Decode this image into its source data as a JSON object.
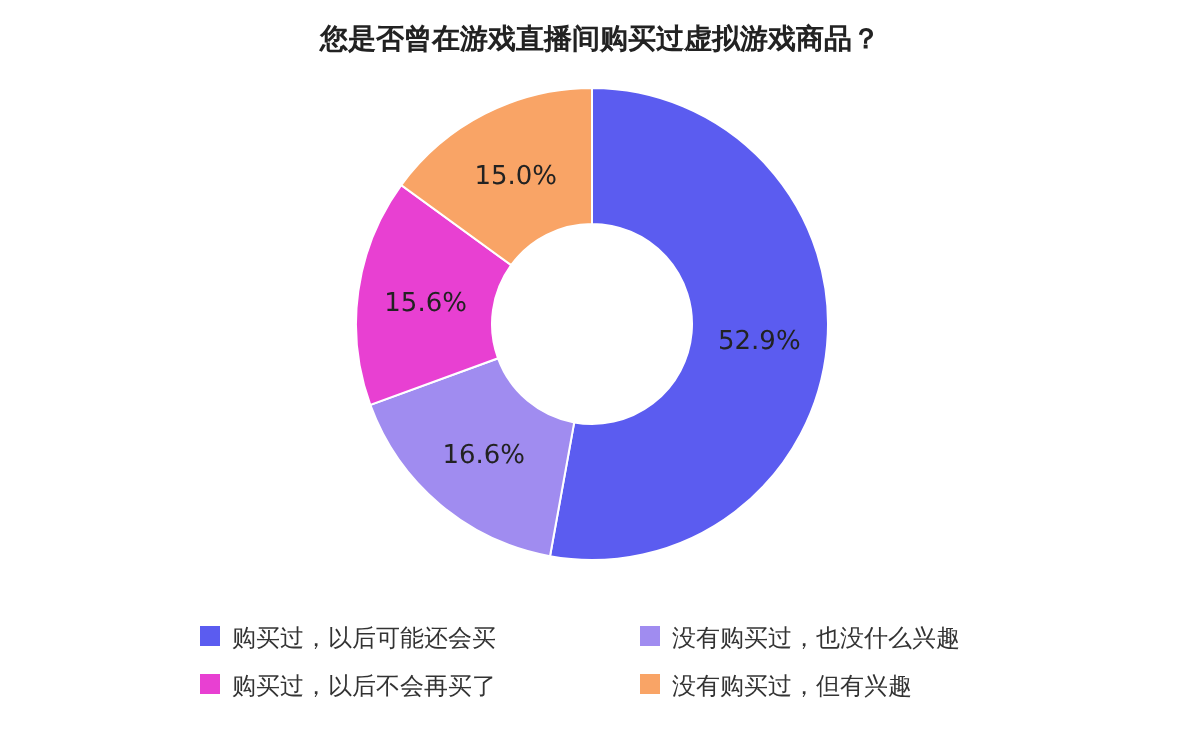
{
  "chart_data": {
    "type": "donut",
    "title": "您是否曾在游戏直播间购买过虚拟游戏商品？",
    "categories": [
      "购买过，以后可能还会买",
      "没有购买过，也没什么兴趣",
      "购买过，以后不会再买了",
      "没有购买过，但有兴趣"
    ],
    "values": [
      52.9,
      16.6,
      15.6,
      15.0
    ],
    "value_labels": [
      "52.9%",
      "16.6%",
      "15.6%",
      "15.0%"
    ],
    "colors": [
      "#5b5cf0",
      "#a08cf0",
      "#e840d2",
      "#f9a466"
    ],
    "legend": "bottom"
  }
}
